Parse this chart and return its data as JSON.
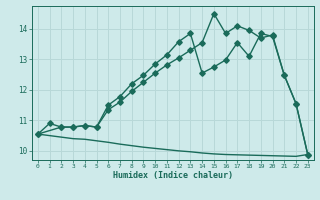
{
  "xlabel": "Humidex (Indice chaleur)",
  "bg_color": "#ceeaea",
  "line_color": "#1a6b5a",
  "grid_color": "#b8d8d8",
  "xlim": [
    -0.5,
    23.5
  ],
  "ylim": [
    9.7,
    14.75
  ],
  "xticks": [
    0,
    1,
    2,
    3,
    4,
    5,
    6,
    7,
    8,
    9,
    10,
    11,
    12,
    13,
    14,
    15,
    16,
    17,
    18,
    19,
    20,
    21,
    22,
    23
  ],
  "yticks": [
    10,
    11,
    12,
    13,
    14
  ],
  "line1_x": [
    0,
    1,
    2,
    3,
    4,
    5,
    6,
    7,
    8,
    9,
    10,
    11,
    12,
    13,
    14,
    15,
    16,
    17,
    18,
    19,
    20,
    21,
    22,
    23
  ],
  "line1_y": [
    10.55,
    10.9,
    10.78,
    10.78,
    10.83,
    10.78,
    11.5,
    11.78,
    12.2,
    12.48,
    12.85,
    13.15,
    13.58,
    13.85,
    12.55,
    12.75,
    12.98,
    13.55,
    13.1,
    13.85,
    13.75,
    12.48,
    11.55,
    9.88
  ],
  "line2_x": [
    0,
    2,
    3,
    4,
    5,
    6,
    7,
    8,
    9,
    10,
    11,
    12,
    13,
    14,
    15,
    16,
    17,
    18,
    19,
    20,
    21,
    22,
    23
  ],
  "line2_y": [
    10.55,
    10.78,
    10.78,
    10.83,
    10.78,
    11.35,
    11.6,
    11.95,
    12.25,
    12.55,
    12.82,
    13.05,
    13.3,
    13.55,
    14.5,
    13.85,
    14.1,
    13.95,
    13.7,
    13.8,
    12.48,
    11.55,
    9.88
  ],
  "line3_x": [
    0,
    1,
    2,
    3,
    4,
    5,
    6,
    7,
    8,
    9,
    10,
    11,
    12,
    13,
    14,
    15,
    16,
    17,
    18,
    19,
    20,
    21,
    22,
    23
  ],
  "line3_y": [
    10.55,
    10.5,
    10.45,
    10.4,
    10.38,
    10.33,
    10.28,
    10.22,
    10.17,
    10.12,
    10.08,
    10.04,
    10.0,
    9.97,
    9.93,
    9.9,
    9.88,
    9.87,
    9.86,
    9.85,
    9.84,
    9.83,
    9.82,
    9.88
  ],
  "marker": "D",
  "markersize": 2.8,
  "linewidth": 1.0
}
